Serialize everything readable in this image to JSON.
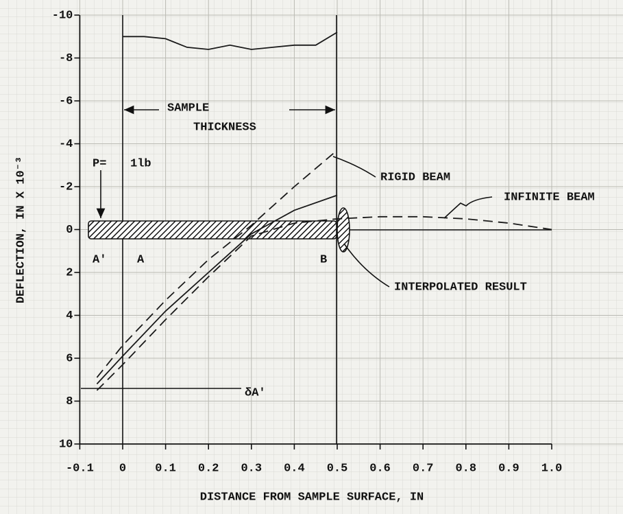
{
  "chart_data": {
    "type": "line",
    "xlabel": "DISTANCE FROM SAMPLE SURFACE, IN",
    "ylabel": "DEFLECTION, IN X 10⁻³",
    "xlim": [
      -0.1,
      1.0
    ],
    "ylim": [
      -10,
      10
    ],
    "y_inverted": true,
    "grid": true,
    "xticks": [
      -0.1,
      0,
      0.1,
      0.2,
      0.3,
      0.4,
      0.5,
      0.6,
      0.7,
      0.8,
      0.9,
      {
        "value": 1,
        "label": "1.0"
      }
    ],
    "yticks": [
      -10,
      -8,
      -6,
      -4,
      -2,
      0,
      2,
      4,
      6,
      8,
      10
    ],
    "series": [
      {
        "name": "RIGID BEAM",
        "color": "#1a1a1a",
        "dashed": true,
        "x": [
          -0.06,
          0,
          0.1,
          0.2,
          0.3,
          0.4,
          0.5
        ],
        "values": [
          6.9,
          5.4,
          3.3,
          1.4,
          -0.2,
          -2.0,
          -3.7
        ]
      },
      {
        "name": "INTERPOLATED RESULT",
        "color": "#1a1a1a",
        "dashed": false,
        "x": [
          -0.06,
          0,
          0.1,
          0.2,
          0.3,
          0.4,
          0.5
        ],
        "values": [
          7.2,
          5.9,
          3.8,
          2.0,
          0.2,
          -0.9,
          -1.6
        ]
      },
      {
        "name": "INFINITE BEAM",
        "color": "#1a1a1a",
        "dashed": true,
        "x": [
          -0.06,
          0,
          0.1,
          0.2,
          0.3,
          0.4,
          0.5,
          0.6,
          0.7,
          0.8,
          0.9,
          1.0
        ],
        "values": [
          7.5,
          6.3,
          4.2,
          2.2,
          0.3,
          -0.3,
          -0.5,
          -0.6,
          -0.6,
          -0.5,
          -0.3,
          0
        ]
      },
      {
        "color": "#1a1a1a",
        "dashed": false,
        "x": [
          0,
          0.05,
          0.1,
          0.15,
          0.2,
          0.25,
          0.3,
          0.35,
          0.4,
          0.45,
          0.5
        ],
        "values": [
          -9.0,
          -9.0,
          -8.9,
          -8.5,
          -8.4,
          -8.6,
          -8.4,
          -8.5,
          -8.6,
          -8.6,
          -9.2
        ]
      }
    ],
    "annotations": {
      "sample": "SAMPLE",
      "thickness": "THICKNESS",
      "p": "P=",
      "load": "1lb",
      "a_prime": "A'",
      "a": "A",
      "b": "B",
      "delta": "δA'"
    }
  }
}
